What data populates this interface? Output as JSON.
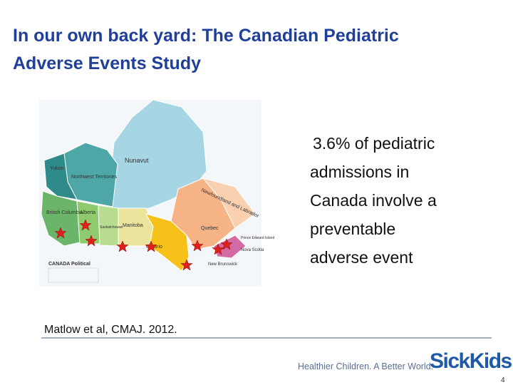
{
  "header": {
    "title_lines": [
      "In our own back yard: The Canadian Pediatric",
      "Adverse Events Study"
    ]
  },
  "body": {
    "lines": [
      "3.6% of pediatric",
      "admissions in",
      "Canada involve a",
      "preventable",
      "adverse event"
    ]
  },
  "map": {
    "title": "CANADA Political",
    "labels": [
      "Yukon",
      "Northwest Territories",
      "Nunavut",
      "British Columbia",
      "Alberta",
      "Saskatchewan",
      "Manitoba",
      "Ontario",
      "Quebec",
      "Newfoundland and Labrador",
      "New Brunswick",
      "Nova Scotia",
      "Prince Edward Island"
    ]
  },
  "citation": "Matlow et al, CMAJ. 2012.",
  "footer": {
    "tagline": "Healthier Children. A Better World.",
    "logo": "SickKids",
    "page_number": "4"
  }
}
